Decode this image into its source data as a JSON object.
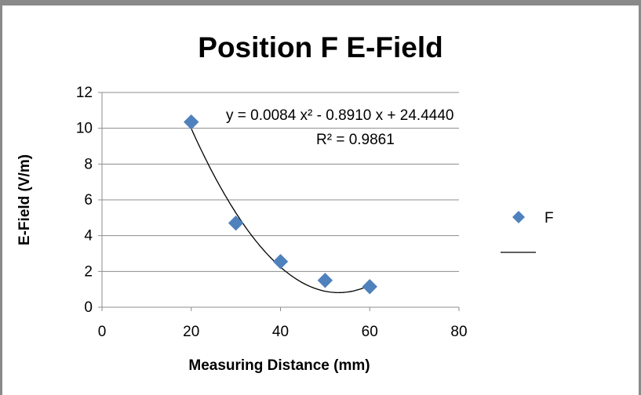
{
  "chart_data": {
    "type": "scatter",
    "title": "Position F E-Field",
    "xlabel": "Measuring Distance (mm)",
    "ylabel": "E-Field (V/m)",
    "xlim": [
      0,
      80
    ],
    "ylim": [
      0,
      12
    ],
    "x_ticks": [
      0,
      20,
      40,
      60,
      80
    ],
    "y_ticks": [
      0,
      2,
      4,
      6,
      8,
      10,
      12
    ],
    "grid": "horizontal",
    "legend_position": "right",
    "legend_marker_label": "F",
    "series": [
      {
        "x": [
          20,
          30,
          40,
          50,
          60
        ],
        "values": [
          10.35,
          4.7,
          2.55,
          1.5,
          1.15
        ],
        "color": "#4f81bd",
        "marker": "diamond"
      }
    ],
    "trendline": {
      "type": "polynomial",
      "order": 2,
      "coefficients": [
        0.0084,
        -0.891,
        24.444
      ],
      "x_range": [
        20,
        60
      ],
      "color": "#000000",
      "equation_text": "y = 0.0084 x² - 0.8910 x + 24.4440",
      "r2_text": "R² = 0.9861"
    }
  }
}
